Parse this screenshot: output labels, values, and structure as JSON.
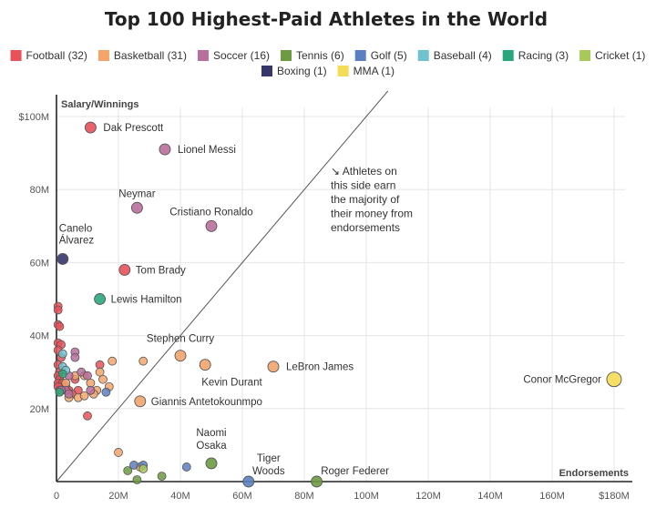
{
  "chart_data": {
    "type": "scatter",
    "title": "Top 100 Highest-Paid Athletes in the World",
    "xlabel": "Endorsements",
    "ylabel": "Salary/Winnings",
    "xlim": [
      0,
      180
    ],
    "ylim": [
      0,
      100
    ],
    "x_ticks": [
      "0",
      "20M",
      "40M",
      "60M",
      "80M",
      "100M",
      "120M",
      "140M",
      "160M",
      "$180M"
    ],
    "y_ticks": [
      "0",
      "20M",
      "40M",
      "60M",
      "80M",
      "$100M"
    ],
    "grid": true,
    "legend_position": "top",
    "legend": [
      {
        "sport": "Football",
        "label": "Football (32)",
        "color": "#e8515a"
      },
      {
        "sport": "Basketball",
        "label": "Basketball (31)",
        "color": "#f2a46b"
      },
      {
        "sport": "Soccer",
        "label": "Soccer (16)",
        "color": "#b96f9c"
      },
      {
        "sport": "Tennis",
        "label": "Tennis (6)",
        "color": "#6d9a43"
      },
      {
        "sport": "Golf",
        "label": "Golf (5)",
        "color": "#5b7fc0"
      },
      {
        "sport": "Baseball",
        "label": "Baseball (4)",
        "color": "#6ec3cf"
      },
      {
        "sport": "Racing",
        "label": "Racing (3)",
        "color": "#2aa77a"
      },
      {
        "sport": "Cricket",
        "label": "Cricket (1)",
        "color": "#a8c95a"
      },
      {
        "sport": "Boxing",
        "label": "Boxing (1)",
        "color": "#36366b"
      },
      {
        "sport": "MMA",
        "label": "MMA (1)",
        "color": "#f5dc57"
      }
    ],
    "annotation_arrow": "↘",
    "annotation_lines": [
      "Athletes on",
      "this side earn",
      "the majority of",
      "their money from",
      "endorsements"
    ],
    "labeled_points": [
      {
        "name": "Dak Prescott",
        "sport": "Football",
        "x": 11,
        "y": 97
      },
      {
        "name": "Lionel Messi",
        "sport": "Soccer",
        "x": 35,
        "y": 91
      },
      {
        "name": "Neymar",
        "sport": "Soccer",
        "x": 26,
        "y": 75
      },
      {
        "name": "Cristiano Ronaldo",
        "sport": "Soccer",
        "x": 50,
        "y": 70
      },
      {
        "name": "Canelo",
        "name2": "Álvarez",
        "sport": "Boxing",
        "x": 2,
        "y": 61
      },
      {
        "name": "Tom Brady",
        "sport": "Football",
        "x": 22,
        "y": 58
      },
      {
        "name": "Lewis Hamilton",
        "sport": "Racing",
        "x": 14,
        "y": 50
      },
      {
        "name": "Stephen Curry",
        "sport": "Basketball",
        "x": 40,
        "y": 34.5
      },
      {
        "name": "Kevin Durant",
        "sport": "Basketball",
        "x": 48,
        "y": 32
      },
      {
        "name": "LeBron James",
        "sport": "Basketball",
        "x": 70,
        "y": 31.5
      },
      {
        "name": "Conor McGregor",
        "sport": "MMA",
        "x": 180,
        "y": 28
      },
      {
        "name": "Giannis Antetokounmpo",
        "sport": "Basketball",
        "x": 27,
        "y": 22
      },
      {
        "name": "Naomi",
        "name2": "Osaka",
        "sport": "Tennis",
        "x": 50,
        "y": 5
      },
      {
        "name": "Tiger",
        "name2": "Woods",
        "sport": "Golf",
        "x": 62,
        "y": 0
      },
      {
        "name": "Roger Federer",
        "sport": "Tennis",
        "x": 84,
        "y": 0
      }
    ],
    "other_points": [
      {
        "sport": "Football",
        "x": 0.5,
        "y": 48
      },
      {
        "sport": "Football",
        "x": 0.5,
        "y": 47
      },
      {
        "sport": "Football",
        "x": 0.5,
        "y": 43
      },
      {
        "sport": "Football",
        "x": 1,
        "y": 42.5
      },
      {
        "sport": "Football",
        "x": 0.5,
        "y": 38
      },
      {
        "sport": "Football",
        "x": 1.5,
        "y": 37.5
      },
      {
        "sport": "Football",
        "x": 0.5,
        "y": 36
      },
      {
        "sport": "Football",
        "x": 1.5,
        "y": 34
      },
      {
        "sport": "Football",
        "x": 0.5,
        "y": 32
      },
      {
        "sport": "Football",
        "x": 1,
        "y": 30
      },
      {
        "sport": "Football",
        "x": 0.5,
        "y": 29
      },
      {
        "sport": "Football",
        "x": 1,
        "y": 28
      },
      {
        "sport": "Football",
        "x": 0.5,
        "y": 27
      },
      {
        "sport": "Football",
        "x": 2,
        "y": 27
      },
      {
        "sport": "Football",
        "x": 0.5,
        "y": 26
      },
      {
        "sport": "Football",
        "x": 3,
        "y": 26
      },
      {
        "sport": "Football",
        "x": 1,
        "y": 25
      },
      {
        "sport": "Football",
        "x": 4,
        "y": 25
      },
      {
        "sport": "Football",
        "x": 6,
        "y": 28
      },
      {
        "sport": "Football",
        "x": 7,
        "y": 25
      },
      {
        "sport": "Football",
        "x": 5,
        "y": 24
      },
      {
        "sport": "Football",
        "x": 14,
        "y": 32
      },
      {
        "sport": "Football",
        "x": 10,
        "y": 18
      },
      {
        "sport": "Basketball",
        "x": 6,
        "y": 29
      },
      {
        "sport": "Basketball",
        "x": 9,
        "y": 29
      },
      {
        "sport": "Basketball",
        "x": 11,
        "y": 27
      },
      {
        "sport": "Basketball",
        "x": 13,
        "y": 25
      },
      {
        "sport": "Basketball",
        "x": 15,
        "y": 28
      },
      {
        "sport": "Basketball",
        "x": 17,
        "y": 26
      },
      {
        "sport": "Basketball",
        "x": 18,
        "y": 33
      },
      {
        "sport": "Basketball",
        "x": 28,
        "y": 33
      },
      {
        "sport": "Basketball",
        "x": 7,
        "y": 23
      },
      {
        "sport": "Basketball",
        "x": 9,
        "y": 23.5
      },
      {
        "sport": "Basketball",
        "x": 12,
        "y": 24
      },
      {
        "sport": "Basketball",
        "x": 4,
        "y": 23
      },
      {
        "sport": "Basketball",
        "x": 3,
        "y": 27
      },
      {
        "sport": "Basketball",
        "x": 14,
        "y": 30
      },
      {
        "sport": "Basketball",
        "x": 20,
        "y": 8
      },
      {
        "sport": "Basketball",
        "x": 27,
        "y": 4
      },
      {
        "sport": "Soccer",
        "x": 4,
        "y": 29
      },
      {
        "sport": "Soccer",
        "x": 6,
        "y": 35.5
      },
      {
        "sport": "Soccer",
        "x": 6,
        "y": 34
      },
      {
        "sport": "Soccer",
        "x": 8,
        "y": 30
      },
      {
        "sport": "Soccer",
        "x": 10,
        "y": 29
      },
      {
        "sport": "Soccer",
        "x": 3,
        "y": 25
      },
      {
        "sport": "Soccer",
        "x": 4,
        "y": 24
      },
      {
        "sport": "Soccer",
        "x": 11,
        "y": 25
      },
      {
        "sport": "Soccer",
        "x": 1.5,
        "y": 25
      },
      {
        "sport": "Tennis",
        "x": 23,
        "y": 3
      },
      {
        "sport": "Tennis",
        "x": 26,
        "y": 0.5
      },
      {
        "sport": "Tennis",
        "x": 34,
        "y": 1.5
      },
      {
        "sport": "Golf",
        "x": 25,
        "y": 4.5
      },
      {
        "sport": "Golf",
        "x": 28,
        "y": 4.5
      },
      {
        "sport": "Golf",
        "x": 42,
        "y": 4
      },
      {
        "sport": "Golf",
        "x": 16,
        "y": 24.5
      },
      {
        "sport": "Baseball",
        "x": 2,
        "y": 35
      },
      {
        "sport": "Baseball",
        "x": 2,
        "y": 31.5
      },
      {
        "sport": "Baseball",
        "x": 3,
        "y": 30.5
      },
      {
        "sport": "Racing",
        "x": 2,
        "y": 29.5
      },
      {
        "sport": "Racing",
        "x": 1,
        "y": 24.5
      },
      {
        "sport": "Cricket",
        "x": 28,
        "y": 3.5
      }
    ]
  }
}
